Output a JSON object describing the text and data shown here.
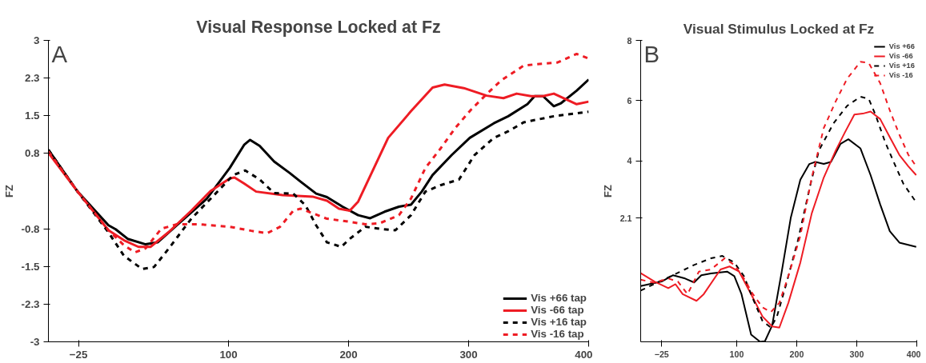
{
  "chart_data": [
    {
      "type": "line",
      "title": "Visual Response Locked at Fz",
      "ylabel": "FZ",
      "annotations": [
        "A"
      ],
      "xlim": [
        -50,
        400
      ],
      "ylim": [
        -3,
        3
      ],
      "xticks": [
        -25,
        100,
        200,
        300,
        400
      ],
      "yticks": [
        {
          "value": -3,
          "label": "-3"
        },
        {
          "value": -2.25,
          "label": "-2.3"
        },
        {
          "value": -1.5,
          "label": "-1.5"
        },
        {
          "value": -0.75,
          "label": "-0.8"
        },
        {
          "value": 0.75,
          "label": "0.8"
        },
        {
          "value": 1.5,
          "label": "1.5"
        },
        {
          "value": 2.25,
          "label": "2.3"
        },
        {
          "value": 3,
          "label": "3"
        }
      ],
      "grid": false,
      "legend": "bottom right",
      "series": [
        {
          "name": "Vis +66 tap",
          "color": "#000000",
          "line_style": "solid",
          "x": [
            -50,
            -26,
            0,
            6,
            16,
            31,
            41,
            57,
            82,
            101,
            113,
            118,
            126,
            138,
            151,
            160,
            173,
            182,
            195,
            208,
            218,
            230,
            242,
            252,
            261,
            270,
            286,
            301,
            321,
            333,
            349,
            355,
            362,
            371,
            377,
            390,
            400
          ],
          "values": [
            0.82,
            0,
            -0.68,
            -0.76,
            -0.95,
            -1.06,
            -1.02,
            -0.68,
            -0.15,
            0.46,
            0.92,
            1.02,
            0.9,
            0.59,
            0.36,
            0.19,
            -0.05,
            -0.12,
            -0.31,
            -0.48,
            -0.54,
            -0.41,
            -0.31,
            -0.27,
            -0.01,
            0.32,
            0.72,
            1.06,
            1.35,
            1.49,
            1.73,
            1.89,
            1.89,
            1.69,
            1.75,
            2.0,
            2.22
          ]
        },
        {
          "name": "Vis -66 tap",
          "color": "#ee1c24",
          "line_style": "solid",
          "x": [
            -50,
            -26,
            0,
            13,
            25,
            35,
            50,
            69,
            85,
            101,
            105,
            113,
            123,
            145,
            170,
            182,
            192,
            201,
            208,
            217,
            233,
            252,
            270,
            280,
            296,
            315,
            329,
            340,
            352,
            362,
            371,
            390,
            400
          ],
          "values": [
            0.76,
            0,
            -0.78,
            -0.98,
            -1.11,
            -1.11,
            -0.82,
            -0.39,
            0,
            0.25,
            0.27,
            0.15,
            -0.01,
            -0.08,
            -0.11,
            -0.19,
            -0.35,
            -0.39,
            -0.21,
            0.25,
            1.06,
            1.59,
            2.06,
            2.12,
            2.05,
            1.9,
            1.85,
            1.94,
            1.89,
            1.89,
            1.94,
            1.73,
            1.78
          ]
        },
        {
          "name": "Vis +16 tap",
          "color": "#000000",
          "line_style": "dashed",
          "x": [
            -50,
            -26,
            0,
            13,
            28,
            38,
            50,
            69,
            88,
            104,
            114,
            126,
            138,
            154,
            164,
            173,
            182,
            194,
            201,
            214,
            226,
            239,
            252,
            264,
            277,
            292,
            305,
            321,
            333,
            346,
            371,
            400
          ],
          "values": [
            0.82,
            0,
            -0.82,
            -1.29,
            -1.55,
            -1.51,
            -1.15,
            -0.55,
            -0.08,
            0.32,
            0.41,
            0.23,
            -0.04,
            -0.05,
            -0.28,
            -0.68,
            -1.02,
            -1.11,
            -0.95,
            -0.71,
            -0.75,
            -0.78,
            -0.48,
            -0.01,
            0.12,
            0.23,
            0.72,
            1.06,
            1.19,
            1.37,
            1.49,
            1.58
          ]
        },
        {
          "name": "Vis -16 tap",
          "color": "#ee1c24",
          "line_style": "dashed",
          "x": [
            -50,
            -26,
            0,
            13,
            22,
            31,
            44,
            57,
            75,
            101,
            119,
            132,
            143,
            154,
            160,
            170,
            182,
            195,
            214,
            226,
            242,
            252,
            264,
            277,
            289,
            302,
            315,
            327,
            346,
            359,
            374,
            390,
            400
          ],
          "values": [
            0.79,
            0,
            -0.78,
            -1.08,
            -1.22,
            -1.14,
            -0.75,
            -0.66,
            -0.66,
            -0.71,
            -0.79,
            -0.84,
            -0.71,
            -0.39,
            -0.35,
            -0.44,
            -0.55,
            -0.59,
            -0.66,
            -0.64,
            -0.48,
            -0.15,
            0.46,
            0.86,
            1.26,
            1.62,
            1.93,
            2.2,
            2.5,
            2.53,
            2.56,
            2.73,
            2.64
          ]
        }
      ]
    },
    {
      "type": "line",
      "title": "Visual Stimulus Locked at Fz",
      "ylabel": "FZ",
      "annotations": [
        "B"
      ],
      "xlim": [
        -60,
        400
      ],
      "ylim": [
        -2,
        8
      ],
      "xticks": [
        -25,
        100,
        200,
        300,
        400
      ],
      "yticks": [
        2.1,
        4,
        6,
        8
      ],
      "grid": false,
      "legend": "top right",
      "series": [
        {
          "name": "Vis +66",
          "color": "#000000",
          "line_style": "solid",
          "x": [
            -60,
            -25,
            -6,
            14,
            29,
            41,
            57,
            84,
            96,
            108,
            124,
            139,
            147,
            159,
            175,
            190,
            206,
            221,
            231,
            245,
            257,
            273,
            286,
            306,
            323,
            339,
            355,
            371,
            399
          ],
          "values": [
            -0.15,
            0,
            0.21,
            0.1,
            -0.03,
            0.21,
            0.27,
            0.33,
            0.18,
            -0.42,
            -1.76,
            -2.0,
            -1.98,
            -1.46,
            0.33,
            2.11,
            3.38,
            3.9,
            3.97,
            3.9,
            3.97,
            4.57,
            4.72,
            4.42,
            3.53,
            2.56,
            1.67,
            1.29,
            1.15
          ]
        },
        {
          "name": "Vis -66",
          "color": "#ee1c24",
          "line_style": "solid",
          "x": [
            -60,
            -37,
            -14,
            -2,
            10,
            33,
            45,
            73,
            88,
            104,
            124,
            143,
            159,
            171,
            186,
            206,
            225,
            245,
            265,
            280,
            296,
            310,
            323,
            339,
            355,
            371,
            386,
            399
          ],
          "values": [
            0.28,
            0,
            -0.22,
            -0.09,
            -0.42,
            -0.64,
            -0.42,
            0.4,
            0.5,
            0.33,
            -0.42,
            -1.16,
            -1.49,
            -1.53,
            -0.71,
            0.63,
            2.26,
            3.45,
            4.35,
            4.94,
            5.54,
            5.57,
            5.64,
            5.39,
            4.79,
            4.2,
            3.82,
            3.53
          ]
        },
        {
          "name": "Vis +16",
          "color": "#000000",
          "line_style": "dashed",
          "x": [
            -60,
            -29,
            -2,
            29,
            57,
            76,
            96,
            112,
            127,
            143,
            157,
            167,
            182,
            202,
            222,
            237,
            261,
            284,
            306,
            320,
            331,
            347,
            363,
            378,
            399
          ],
          "values": [
            -0.3,
            0,
            0.25,
            0.55,
            0.77,
            0.85,
            0.63,
            0.18,
            -0.57,
            -1.31,
            -1.53,
            -1.16,
            -0.12,
            1.37,
            3.15,
            4.35,
            5.24,
            5.83,
            6.13,
            6.06,
            5.54,
            4.64,
            3.9,
            3.23,
            2.63
          ]
        },
        {
          "name": "Vis -16",
          "color": "#ee1c24",
          "line_style": "dashed",
          "x": [
            -60,
            -37,
            -14,
            2,
            18,
            37,
            57,
            80,
            96,
            112,
            127,
            143,
            157,
            171,
            186,
            206,
            225,
            245,
            265,
            284,
            306,
            320,
            339,
            355,
            371,
            386,
            399
          ],
          "values": [
            0.06,
            -0.04,
            0.1,
            0,
            -0.42,
            0.33,
            0.4,
            0.77,
            0.55,
            0.1,
            -0.42,
            -0.86,
            -1.01,
            -0.71,
            0.18,
            1.52,
            3.45,
            5.09,
            5.98,
            6.73,
            7.29,
            7.25,
            6.58,
            5.68,
            4.87,
            4.2,
            3.82
          ]
        }
      ]
    }
  ]
}
